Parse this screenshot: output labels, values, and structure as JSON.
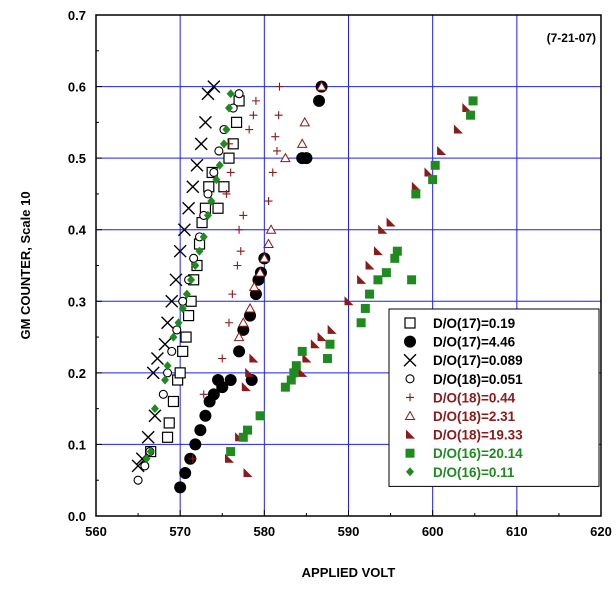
{
  "chart_data": {
    "type": "scatter",
    "title": "",
    "annotation": "(7-21-07)",
    "xlabel": "APPLIED VOLT",
    "ylabel": "GM COUNTER, Scale 10",
    "xlim": [
      560,
      620
    ],
    "ylim": [
      0,
      0.7
    ],
    "x_ticks": [
      "560",
      "570",
      "580",
      "590",
      "600",
      "610",
      "620"
    ],
    "y_ticks": [
      "0.0",
      "0.1",
      "0.2",
      "0.3",
      "0.4",
      "0.5",
      "0.6",
      "0.7"
    ],
    "grid": true,
    "legend_position": "bottom-right",
    "colors": {
      "axis": "#000000",
      "grid": "#1f1ff0",
      "dark_red": "#8b1a1a",
      "green": "#1f8a1f"
    },
    "series": [
      {
        "name": "D/O(17)=0.19",
        "marker": "open-square",
        "color": "#000000",
        "points": [
          [
            566.5,
            0.09
          ],
          [
            568.5,
            0.11
          ],
          [
            568.7,
            0.13
          ],
          [
            569.2,
            0.16
          ],
          [
            569.7,
            0.19
          ],
          [
            570.0,
            0.2
          ],
          [
            570.3,
            0.23
          ],
          [
            570.7,
            0.25
          ],
          [
            571.0,
            0.28
          ],
          [
            571.3,
            0.3
          ],
          [
            571.6,
            0.33
          ],
          [
            572.0,
            0.35
          ],
          [
            572.3,
            0.38
          ],
          [
            572.6,
            0.41
          ],
          [
            573.0,
            0.43
          ],
          [
            573.4,
            0.46
          ],
          [
            573.8,
            0.48
          ],
          [
            574.5,
            0.43
          ],
          [
            575.2,
            0.46
          ],
          [
            575.8,
            0.5
          ],
          [
            576.3,
            0.52
          ],
          [
            576.7,
            0.55
          ],
          [
            577.0,
            0.58
          ]
        ]
      },
      {
        "name": "D/O(17)=4.46",
        "marker": "filled-circle",
        "color": "#000000",
        "points": [
          [
            570.0,
            0.04
          ],
          [
            570.6,
            0.06
          ],
          [
            571.2,
            0.08
          ],
          [
            571.8,
            0.1
          ],
          [
            572.4,
            0.12
          ],
          [
            573.0,
            0.14
          ],
          [
            573.5,
            0.16
          ],
          [
            574.0,
            0.17
          ],
          [
            574.5,
            0.19
          ],
          [
            575.0,
            0.18
          ],
          [
            576.0,
            0.19
          ],
          [
            577.0,
            0.23
          ],
          [
            577.5,
            0.26
          ],
          [
            578.3,
            0.28
          ],
          [
            578.5,
            0.19
          ],
          [
            579.0,
            0.31
          ],
          [
            579.3,
            0.33
          ],
          [
            579.6,
            0.34
          ],
          [
            580.0,
            0.36
          ],
          [
            584.5,
            0.5
          ],
          [
            585.0,
            0.5
          ],
          [
            586.5,
            0.58
          ],
          [
            586.8,
            0.6
          ]
        ]
      },
      {
        "name": "D/O(17)=0.089",
        "marker": "cross",
        "color": "#000000",
        "points": [
          [
            565.0,
            0.07
          ],
          [
            565.5,
            0.08
          ],
          [
            566.2,
            0.11
          ],
          [
            567.0,
            0.14
          ],
          [
            566.8,
            0.2
          ],
          [
            567.3,
            0.22
          ],
          [
            568.2,
            0.24
          ],
          [
            568.5,
            0.27
          ],
          [
            569.0,
            0.3
          ],
          [
            569.5,
            0.33
          ],
          [
            570.0,
            0.37
          ],
          [
            570.5,
            0.4
          ],
          [
            571.0,
            0.43
          ],
          [
            571.5,
            0.46
          ],
          [
            572.0,
            0.49
          ],
          [
            572.5,
            0.52
          ],
          [
            573.0,
            0.55
          ],
          [
            573.3,
            0.59
          ],
          [
            574.0,
            0.6
          ]
        ]
      },
      {
        "name": "D/O(18)=0.051",
        "marker": "open-circle",
        "color": "#000000",
        "points": [
          [
            565.0,
            0.05
          ],
          [
            565.8,
            0.07
          ],
          [
            566.4,
            0.09
          ],
          [
            568.0,
            0.17
          ],
          [
            568.5,
            0.2
          ],
          [
            569.0,
            0.23
          ],
          [
            569.6,
            0.26
          ],
          [
            570.3,
            0.3
          ],
          [
            571.0,
            0.33
          ],
          [
            571.6,
            0.36
          ],
          [
            572.3,
            0.39
          ],
          [
            572.8,
            0.42
          ],
          [
            573.3,
            0.45
          ],
          [
            574.0,
            0.48
          ],
          [
            574.6,
            0.51
          ],
          [
            575.2,
            0.54
          ],
          [
            576.3,
            0.57
          ],
          [
            577.0,
            0.59
          ]
        ]
      },
      {
        "name": "D/O(18)=0.44",
        "marker": "plus",
        "color": "#8b1a1a",
        "points": [
          [
            571.5,
            0.08
          ],
          [
            572.8,
            0.17
          ],
          [
            575.0,
            0.22
          ],
          [
            575.8,
            0.27
          ],
          [
            576.2,
            0.31
          ],
          [
            576.8,
            0.35
          ],
          [
            577.2,
            0.37
          ],
          [
            577.0,
            0.4
          ],
          [
            577.5,
            0.42
          ],
          [
            575.5,
            0.45
          ],
          [
            576.0,
            0.48
          ],
          [
            575.8,
            0.52
          ],
          [
            578.2,
            0.54
          ],
          [
            578.7,
            0.56
          ],
          [
            579.0,
            0.58
          ],
          [
            580.5,
            0.44
          ],
          [
            581.0,
            0.48
          ],
          [
            581.5,
            0.51
          ],
          [
            581.3,
            0.53
          ],
          [
            581.7,
            0.56
          ],
          [
            581.8,
            0.6
          ]
        ]
      },
      {
        "name": "D/O(18)=2.31",
        "marker": "open-triangle",
        "color": "#8b1a1a",
        "points": [
          [
            577.0,
            0.25
          ],
          [
            577.5,
            0.27
          ],
          [
            578.3,
            0.29
          ],
          [
            578.8,
            0.32
          ],
          [
            579.5,
            0.34
          ],
          [
            580.0,
            0.36
          ],
          [
            580.5,
            0.38
          ],
          [
            580.8,
            0.4
          ],
          [
            582.5,
            0.5
          ],
          [
            584.5,
            0.52
          ],
          [
            584.8,
            0.55
          ],
          [
            586.8,
            0.6
          ]
        ]
      },
      {
        "name": "D/O(18)=19.33",
        "marker": "filled-triangle",
        "color": "#8b1a1a",
        "points": [
          [
            575.8,
            0.08
          ],
          [
            577.0,
            0.11
          ],
          [
            578.0,
            0.06
          ],
          [
            577.8,
            0.18
          ],
          [
            578.2,
            0.2
          ],
          [
            578.7,
            0.22
          ],
          [
            584.5,
            0.2
          ],
          [
            585.0,
            0.22
          ],
          [
            586.0,
            0.24
          ],
          [
            586.8,
            0.25
          ],
          [
            588.0,
            0.26
          ],
          [
            590.0,
            0.3
          ],
          [
            591.5,
            0.33
          ],
          [
            592.5,
            0.35
          ],
          [
            593.5,
            0.37
          ],
          [
            594.0,
            0.4
          ],
          [
            595.0,
            0.41
          ],
          [
            598.0,
            0.46
          ],
          [
            599.5,
            0.48
          ],
          [
            601.0,
            0.51
          ],
          [
            603.0,
            0.54
          ],
          [
            604.0,
            0.57
          ]
        ]
      },
      {
        "name": "D/O(16)=20.14",
        "marker": "filled-square",
        "color": "#1f8a1f",
        "points": [
          [
            576.0,
            0.09
          ],
          [
            577.5,
            0.11
          ],
          [
            578.0,
            0.12
          ],
          [
            579.5,
            0.14
          ],
          [
            582.5,
            0.18
          ],
          [
            583.2,
            0.19
          ],
          [
            583.5,
            0.2
          ],
          [
            583.8,
            0.21
          ],
          [
            584.5,
            0.23
          ],
          [
            587.5,
            0.22
          ],
          [
            587.8,
            0.24
          ],
          [
            591.5,
            0.27
          ],
          [
            592.0,
            0.29
          ],
          [
            592.5,
            0.31
          ],
          [
            593.5,
            0.33
          ],
          [
            594.5,
            0.34
          ],
          [
            595.5,
            0.36
          ],
          [
            595.8,
            0.37
          ],
          [
            597.5,
            0.33
          ],
          [
            598.0,
            0.45
          ],
          [
            600.0,
            0.47
          ],
          [
            600.3,
            0.49
          ],
          [
            604.5,
            0.56
          ],
          [
            604.8,
            0.58
          ]
        ]
      },
      {
        "name": "D/O(16)=0.11",
        "marker": "diamond",
        "color": "#1f8a1f",
        "points": [
          [
            566.0,
            0.08
          ],
          [
            566.5,
            0.09
          ],
          [
            567.0,
            0.15
          ],
          [
            568.2,
            0.19
          ],
          [
            568.5,
            0.21
          ],
          [
            569.2,
            0.25
          ],
          [
            569.8,
            0.27
          ],
          [
            570.3,
            0.29
          ],
          [
            570.8,
            0.31
          ],
          [
            571.3,
            0.33
          ],
          [
            571.8,
            0.35
          ],
          [
            572.3,
            0.37
          ],
          [
            572.8,
            0.39
          ],
          [
            573.3,
            0.42
          ],
          [
            573.7,
            0.44
          ],
          [
            574.3,
            0.47
          ],
          [
            574.7,
            0.49
          ],
          [
            575.2,
            0.52
          ],
          [
            575.5,
            0.54
          ],
          [
            575.8,
            0.57
          ],
          [
            576.0,
            0.59
          ]
        ]
      }
    ]
  }
}
